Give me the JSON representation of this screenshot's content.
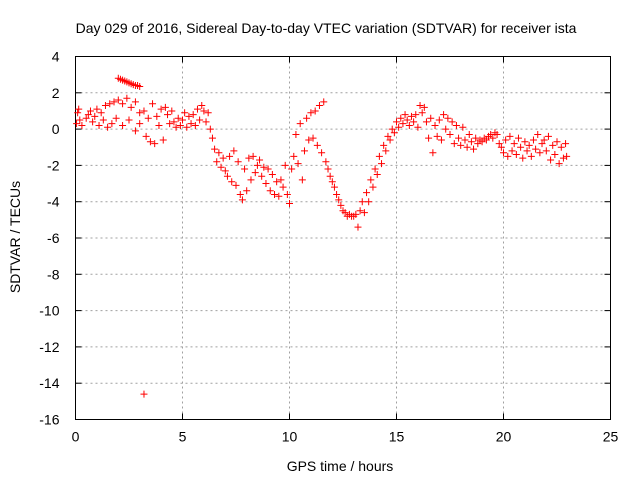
{
  "chart_data": {
    "type": "scatter",
    "title": "Day 029 of 2016, Sidereal Day-to-day VTEC variation (SDTVAR) for receiver ista",
    "xlabel": "GPS time / hours",
    "ylabel": "SDTVAR / TECUs",
    "xlim": [
      0,
      25
    ],
    "ylim": [
      -16,
      4
    ],
    "xticks": [
      0,
      5,
      10,
      15,
      20,
      25
    ],
    "yticks": [
      -16,
      -14,
      -12,
      -10,
      -8,
      -6,
      -4,
      -2,
      0,
      2,
      4
    ],
    "grid": true,
    "marker": "+",
    "color": "#ff0000",
    "series": [
      {
        "name": "SDTVAR",
        "points": [
          [
            0.05,
            0.3
          ],
          [
            0.1,
            0.9
          ],
          [
            0.15,
            1.1
          ],
          [
            0.2,
            0.5
          ],
          [
            0.3,
            0.2
          ],
          [
            0.5,
            0.6
          ],
          [
            0.6,
            0.8
          ],
          [
            0.7,
            1.0
          ],
          [
            0.8,
            0.4
          ],
          [
            0.9,
            0.7
          ],
          [
            1.0,
            1.1
          ],
          [
            1.1,
            0.2
          ],
          [
            1.2,
            0.9
          ],
          [
            1.3,
            0.5
          ],
          [
            1.4,
            1.3
          ],
          [
            1.5,
            0.1
          ],
          [
            1.6,
            1.4
          ],
          [
            1.7,
            0.3
          ],
          [
            1.8,
            1.5
          ],
          [
            1.9,
            0.6
          ],
          [
            2.0,
            2.8
          ],
          [
            2.1,
            2.75
          ],
          [
            2.2,
            2.7
          ],
          [
            2.3,
            2.65
          ],
          [
            2.4,
            2.6
          ],
          [
            2.5,
            2.55
          ],
          [
            2.6,
            2.5
          ],
          [
            2.7,
            2.45
          ],
          [
            2.8,
            2.4
          ],
          [
            2.9,
            2.4
          ],
          [
            3.0,
            2.35
          ],
          [
            2.0,
            1.6
          ],
          [
            2.2,
            1.4
          ],
          [
            2.4,
            1.7
          ],
          [
            2.6,
            1.2
          ],
          [
            2.8,
            1.5
          ],
          [
            3.0,
            0.9
          ],
          [
            2.2,
            0.2
          ],
          [
            2.5,
            0.5
          ],
          [
            2.8,
            -0.1
          ],
          [
            3.0,
            0.3
          ],
          [
            3.2,
            1.0
          ],
          [
            3.3,
            -0.4
          ],
          [
            3.4,
            0.6
          ],
          [
            3.5,
            -0.7
          ],
          [
            3.6,
            1.4
          ],
          [
            3.7,
            -0.8
          ],
          [
            3.8,
            0.7
          ],
          [
            3.9,
            0.2
          ],
          [
            4.0,
            1.1
          ],
          [
            4.1,
            -0.6
          ],
          [
            4.2,
            1.2
          ],
          [
            4.3,
            0.8
          ],
          [
            4.4,
            0.3
          ],
          [
            4.5,
            1.0
          ],
          [
            4.6,
            0.4
          ],
          [
            4.7,
            0.1
          ],
          [
            4.8,
            0.6
          ],
          [
            4.9,
            0.2
          ],
          [
            5.0,
            0.5
          ],
          [
            5.1,
            0.9
          ],
          [
            5.2,
            0.1
          ],
          [
            5.3,
            0.7
          ],
          [
            5.4,
            0.3
          ],
          [
            5.5,
            0.8
          ],
          [
            5.6,
            0.2
          ],
          [
            5.7,
            1.1
          ],
          [
            5.8,
            0.5
          ],
          [
            5.9,
            1.3
          ],
          [
            6.0,
            1.0
          ],
          [
            6.1,
            0.4
          ],
          [
            6.2,
            0.9
          ],
          [
            6.3,
            0.0
          ],
          [
            6.4,
            -0.5
          ],
          [
            6.5,
            -1.1
          ],
          [
            6.6,
            -1.8
          ],
          [
            6.7,
            -1.3
          ],
          [
            6.8,
            -2.1
          ],
          [
            6.9,
            -1.6
          ],
          [
            7.0,
            -2.3
          ],
          [
            7.1,
            -2.6
          ],
          [
            7.2,
            -1.5
          ],
          [
            7.3,
            -2.9
          ],
          [
            7.4,
            -1.2
          ],
          [
            7.5,
            -3.1
          ],
          [
            7.6,
            -1.8
          ],
          [
            7.7,
            -3.6
          ],
          [
            7.8,
            -3.9
          ],
          [
            7.9,
            -2.2
          ],
          [
            8.0,
            -3.4
          ],
          [
            8.1,
            -1.6
          ],
          [
            8.2,
            -2.8
          ],
          [
            8.3,
            -1.5
          ],
          [
            8.4,
            -2.4
          ],
          [
            8.5,
            -2.0
          ],
          [
            8.6,
            -1.7
          ],
          [
            8.7,
            -2.6
          ],
          [
            8.8,
            -2.1
          ],
          [
            8.9,
            -3.0
          ],
          [
            9.0,
            -2.2
          ],
          [
            9.1,
            -3.4
          ],
          [
            9.2,
            -2.5
          ],
          [
            9.3,
            -3.6
          ],
          [
            9.4,
            -2.9
          ],
          [
            9.5,
            -3.7
          ],
          [
            9.6,
            -2.8
          ],
          [
            9.7,
            -3.2
          ],
          [
            9.8,
            -2.0
          ],
          [
            9.9,
            -3.6
          ],
          [
            10.0,
            -4.1
          ],
          [
            10.1,
            -2.2
          ],
          [
            10.2,
            -1.5
          ],
          [
            10.3,
            -0.3
          ],
          [
            10.4,
            -1.9
          ],
          [
            10.5,
            0.3
          ],
          [
            10.6,
            -2.8
          ],
          [
            10.7,
            -1.2
          ],
          [
            10.8,
            0.6
          ],
          [
            10.9,
            -0.6
          ],
          [
            11.0,
            0.9
          ],
          [
            11.1,
            -0.5
          ],
          [
            11.2,
            1.0
          ],
          [
            11.3,
            -0.9
          ],
          [
            11.4,
            1.3
          ],
          [
            11.5,
            -1.3
          ],
          [
            11.6,
            1.5
          ],
          [
            11.7,
            -1.8
          ],
          [
            11.8,
            -2.2
          ],
          [
            11.9,
            -2.6
          ],
          [
            12.0,
            -2.9
          ],
          [
            12.1,
            -3.2
          ],
          [
            12.2,
            -3.6
          ],
          [
            12.3,
            -3.9
          ],
          [
            12.4,
            -4.2
          ],
          [
            12.5,
            -4.5
          ],
          [
            12.6,
            -4.6
          ],
          [
            12.7,
            -4.8
          ],
          [
            12.8,
            -4.7
          ],
          [
            12.9,
            -4.8
          ],
          [
            13.0,
            -4.8
          ],
          [
            13.1,
            -4.7
          ],
          [
            13.2,
            -5.4
          ],
          [
            13.3,
            -4.5
          ],
          [
            13.4,
            -4.0
          ],
          [
            13.5,
            -4.6
          ],
          [
            13.6,
            -3.5
          ],
          [
            13.7,
            -4.0
          ],
          [
            13.8,
            -2.8
          ],
          [
            13.9,
            -3.2
          ],
          [
            14.0,
            -2.2
          ],
          [
            14.1,
            -2.5
          ],
          [
            14.2,
            -1.5
          ],
          [
            14.3,
            -1.9
          ],
          [
            14.4,
            -0.9
          ],
          [
            14.5,
            -1.2
          ],
          [
            14.6,
            -0.4
          ],
          [
            14.7,
            -0.6
          ],
          [
            14.8,
            0.0
          ],
          [
            14.9,
            -0.2
          ],
          [
            15.0,
            0.4
          ],
          [
            15.1,
            0.1
          ],
          [
            15.2,
            0.6
          ],
          [
            15.3,
            0.3
          ],
          [
            15.4,
            0.8
          ],
          [
            15.5,
            0.5
          ],
          [
            15.6,
            0.2
          ],
          [
            15.7,
            0.7
          ],
          [
            15.8,
            0.4
          ],
          [
            15.9,
            0.8
          ],
          [
            16.0,
            0.1
          ],
          [
            16.1,
            1.3
          ],
          [
            16.2,
            0.9
          ],
          [
            16.3,
            1.2
          ],
          [
            16.4,
            0.4
          ],
          [
            16.5,
            -0.5
          ],
          [
            16.6,
            0.6
          ],
          [
            16.7,
            -1.3
          ],
          [
            16.8,
            0.2
          ],
          [
            16.9,
            -0.4
          ],
          [
            17.0,
            0.5
          ],
          [
            17.1,
            -0.6
          ],
          [
            17.2,
            0.8
          ],
          [
            17.3,
            0.0
          ],
          [
            17.4,
            0.6
          ],
          [
            17.5,
            -0.3
          ],
          [
            17.6,
            0.4
          ],
          [
            17.7,
            -0.8
          ],
          [
            17.8,
            0.2
          ],
          [
            17.9,
            -0.5
          ],
          [
            18.0,
            -0.9
          ],
          [
            18.1,
            0.1
          ],
          [
            18.2,
            -0.6
          ],
          [
            18.3,
            -1.0
          ],
          [
            18.4,
            -0.3
          ],
          [
            18.5,
            -0.7
          ],
          [
            18.6,
            -1.1
          ],
          [
            18.7,
            -0.5
          ],
          [
            18.8,
            -0.8
          ],
          [
            18.9,
            -0.6
          ],
          [
            19.0,
            -0.7
          ],
          [
            19.1,
            -0.5
          ],
          [
            19.2,
            -0.6
          ],
          [
            19.3,
            -0.4
          ],
          [
            19.4,
            -0.3
          ],
          [
            19.5,
            -0.5
          ],
          [
            19.6,
            -0.2
          ],
          [
            19.7,
            -0.3
          ],
          [
            19.8,
            -0.8
          ],
          [
            19.9,
            -1.0
          ],
          [
            20.0,
            -1.3
          ],
          [
            20.1,
            -0.6
          ],
          [
            20.2,
            -1.5
          ],
          [
            20.3,
            -0.4
          ],
          [
            20.4,
            -1.2
          ],
          [
            20.5,
            -0.8
          ],
          [
            20.6,
            -1.4
          ],
          [
            20.7,
            -0.5
          ],
          [
            20.8,
            -1.0
          ],
          [
            20.9,
            -1.6
          ],
          [
            21.0,
            -0.7
          ],
          [
            21.1,
            -1.2
          ],
          [
            21.2,
            -0.9
          ],
          [
            21.3,
            -1.5
          ],
          [
            21.4,
            -0.6
          ],
          [
            21.5,
            -1.1
          ],
          [
            21.6,
            -0.3
          ],
          [
            21.7,
            -1.3
          ],
          [
            21.8,
            -0.8
          ],
          [
            21.9,
            -0.6
          ],
          [
            22.0,
            -1.2
          ],
          [
            22.1,
            -0.4
          ],
          [
            22.2,
            -1.7
          ],
          [
            22.3,
            -0.9
          ],
          [
            22.4,
            -1.4
          ],
          [
            22.5,
            -0.7
          ],
          [
            22.6,
            -1.9
          ],
          [
            22.7,
            -1.0
          ],
          [
            22.8,
            -1.6
          ],
          [
            22.9,
            -0.8
          ],
          [
            22.95,
            -1.5
          ],
          [
            3.2,
            -14.6
          ]
        ]
      }
    ]
  }
}
